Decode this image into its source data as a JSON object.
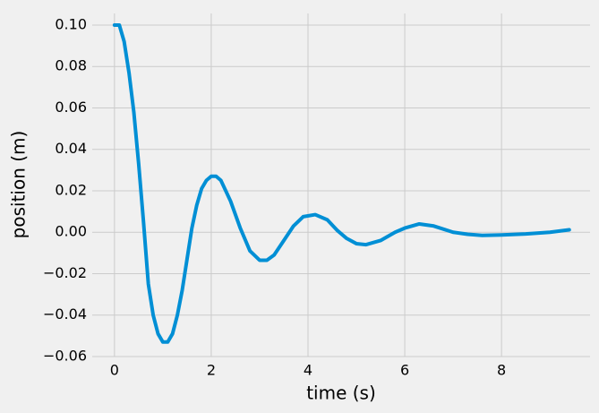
{
  "chart_data": {
    "type": "line",
    "xlabel": "time (s)",
    "ylabel": "position (m)",
    "x": [
      0,
      0.1,
      0.2,
      0.3,
      0.4,
      0.5,
      0.6,
      0.7,
      0.8,
      0.9,
      1.0,
      1.1,
      1.2,
      1.3,
      1.4,
      1.5,
      1.6,
      1.7,
      1.8,
      1.9,
      2.0,
      2.1,
      2.2,
      2.4,
      2.6,
      2.8,
      3.0,
      3.15,
      3.3,
      3.5,
      3.7,
      3.9,
      4.15,
      4.4,
      4.6,
      4.8,
      5.0,
      5.2,
      5.5,
      5.8,
      6.0,
      6.3,
      6.6,
      7.0,
      7.3,
      7.6,
      8.0,
      8.5,
      9.0,
      9.4
    ],
    "series": [
      {
        "color": "#008fd5",
        "values": [
          0.1,
          0.1,
          0.092,
          0.077,
          0.058,
          0.033,
          0.005,
          -0.025,
          -0.04,
          -0.049,
          -0.053,
          -0.053,
          -0.049,
          -0.04,
          -0.028,
          -0.013,
          0.002,
          0.013,
          0.021,
          0.025,
          0.027,
          0.027,
          0.025,
          0.015,
          0.002,
          -0.009,
          -0.0135,
          -0.0135,
          -0.011,
          -0.004,
          0.003,
          0.0075,
          0.0085,
          0.006,
          0.001,
          -0.003,
          -0.0055,
          -0.006,
          -0.004,
          0.0,
          0.002,
          0.004,
          0.003,
          0.0,
          -0.001,
          -0.0015,
          -0.0013,
          -0.0008,
          0.0,
          0.0012
        ]
      }
    ],
    "xlim": [
      -0.46,
      9.83
    ],
    "ylim": [
      -0.06,
      0.1056
    ],
    "xticks": [
      0,
      2,
      4,
      6,
      8
    ],
    "yticks": [
      {
        "value": -0.06,
        "label": "−0.06"
      },
      {
        "value": -0.04,
        "label": "−0.04"
      },
      {
        "value": -0.02,
        "label": "−0.02"
      },
      {
        "value": 0,
        "label": "0.00"
      },
      0.02,
      0.04,
      0.06,
      0.08,
      {
        "value": 0.1,
        "label": "0.10"
      }
    ],
    "grid": true
  }
}
